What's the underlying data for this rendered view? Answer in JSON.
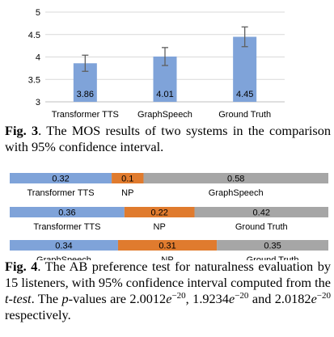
{
  "figure3": {
    "caption_label": "Fig. 3",
    "caption_text": ". The MOS results of two systems in the comparison with 95% confidence interval."
  },
  "figure4": {
    "caption_label": "Fig. 4",
    "caption_part1": ". The AB preference test for naturalness evaluation by 15 listeners, with 95% confidence interval computed from the ",
    "caption_ttest": "t-test",
    "caption_part2": ". The ",
    "caption_p": "p",
    "caption_part3": "-values are ",
    "p1_base": "2.0012",
    "p1_e": "e",
    "p1_exp": "−20",
    "sep1": ", ",
    "p2_base": "1.9234",
    "p2_e": "e",
    "p2_exp": "−20",
    "sep2": " and ",
    "p3_base": "2.0182",
    "p3_e": "e",
    "p3_exp": "−20",
    "caption_end": " respectively."
  },
  "chart_data": [
    {
      "type": "bar",
      "categories": [
        "Transformer TTS",
        "GraphSpeech",
        "Ground Truth"
      ],
      "values": [
        3.86,
        4.01,
        4.45
      ],
      "value_labels": [
        "3.86",
        "4.01",
        "4.45"
      ],
      "error": [
        0.18,
        0.2,
        0.22
      ],
      "ylim": [
        3,
        5
      ],
      "yticks": [
        "3",
        "3.5",
        "4",
        "4.5",
        "5"
      ],
      "ytick_values": [
        3,
        3.5,
        4,
        4.5,
        5
      ],
      "grid": true,
      "bar_color": "#7fa3d9",
      "error_color": "#606060"
    },
    {
      "type": "bar",
      "stacked": true,
      "orientation": "horizontal",
      "rows": [
        {
          "segments": [
            {
              "value": 0.32,
              "label": "0.32",
              "color": "#7fa3d9"
            },
            {
              "value": 0.1,
              "label": "0.1",
              "color": "#e07b2e"
            },
            {
              "value": 0.58,
              "label": "0.58",
              "color": "#a6a6a6"
            }
          ],
          "names": [
            "Transformer TTS",
            "NP",
            "GraphSpeech"
          ]
        },
        {
          "segments": [
            {
              "value": 0.36,
              "label": "0.36",
              "color": "#7fa3d9"
            },
            {
              "value": 0.22,
              "label": "0.22",
              "color": "#e07b2e"
            },
            {
              "value": 0.42,
              "label": "0.42",
              "color": "#a6a6a6"
            }
          ],
          "names": [
            "Transformer TTS",
            "NP",
            "Ground Truth"
          ]
        },
        {
          "segments": [
            {
              "value": 0.34,
              "label": "0.34",
              "color": "#7fa3d9"
            },
            {
              "value": 0.31,
              "label": "0.31",
              "color": "#e07b2e"
            },
            {
              "value": 0.35,
              "label": "0.35",
              "color": "#a6a6a6"
            }
          ],
          "names": [
            "GraphSpeech",
            "NP",
            "Ground Truth"
          ]
        }
      ]
    }
  ]
}
